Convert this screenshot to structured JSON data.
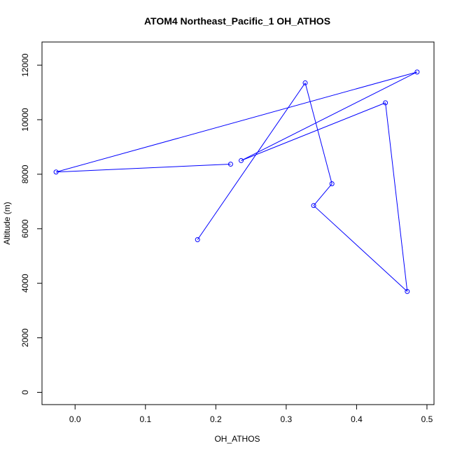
{
  "chart_data": {
    "type": "line",
    "title": "ATOM4 Northeast_Pacific_1 OH_ATHOS",
    "xlabel": "OH_ATHOS",
    "ylabel": "Altitude (m)",
    "xlim": [
      -0.047,
      0.51
    ],
    "ylim": [
      -450,
      12850
    ],
    "x_ticks": [
      0.0,
      0.1,
      0.2,
      0.3,
      0.4,
      0.5
    ],
    "x_tick_labels": [
      "0.0",
      "0.1",
      "0.2",
      "0.3",
      "0.4",
      "0.5"
    ],
    "y_ticks": [
      0,
      2000,
      4000,
      6000,
      8000,
      10000,
      12000
    ],
    "y_tick_labels": [
      "0",
      "2000",
      "4000",
      "6000",
      "8000",
      "10000",
      "12000"
    ],
    "series": [
      {
        "color": "#0000ff",
        "marker": "open-circle",
        "x": [
          0.174,
          0.327,
          0.365,
          0.339,
          0.472,
          0.441,
          0.236,
          0.486,
          -0.027,
          0.221
        ],
        "y": [
          5600,
          11350,
          7650,
          6850,
          3700,
          10620,
          8500,
          11750,
          8080,
          8370
        ]
      }
    ],
    "grid": false,
    "legend": "none"
  }
}
